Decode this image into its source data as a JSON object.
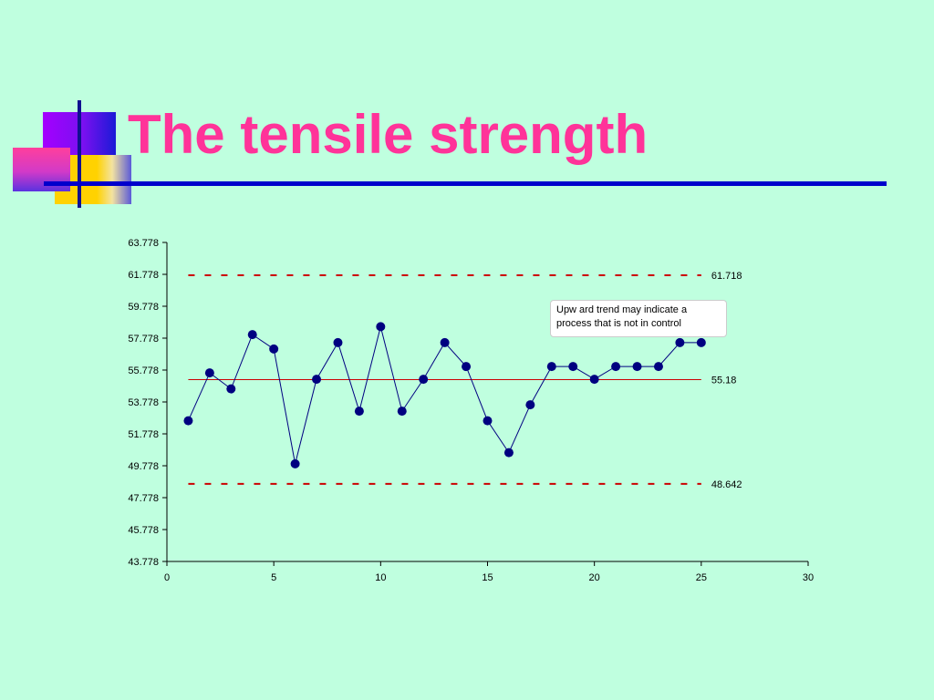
{
  "slide": {
    "title": "The tensile strength"
  },
  "colors": {
    "background": "#bfffdf",
    "title": "#ff3399",
    "rule": "#0000cc",
    "series": "#000080",
    "control_limits": "#cc0000"
  },
  "chart_data": {
    "type": "line",
    "title": "",
    "xlabel": "",
    "ylabel": "",
    "xlim": [
      0,
      30
    ],
    "ylim": [
      43.778,
      63.778
    ],
    "x_ticks": [
      "0",
      "5",
      "10",
      "15",
      "20",
      "25",
      "30"
    ],
    "y_ticks": [
      "63.778",
      "61.778",
      "59.778",
      "57.778",
      "55.778",
      "53.778",
      "51.778",
      "49.778",
      "47.778",
      "45.778",
      "43.778"
    ],
    "grid": false,
    "series": [
      {
        "x": [
          1,
          2,
          3,
          4,
          5,
          6,
          7,
          8,
          9,
          10,
          11,
          12,
          13,
          14,
          15,
          16,
          17,
          18,
          19,
          20,
          21,
          22,
          23,
          24,
          25
        ],
        "y": [
          52.6,
          55.6,
          54.6,
          58.0,
          57.1,
          49.9,
          55.2,
          57.5,
          53.2,
          58.5,
          53.2,
          55.2,
          57.5,
          56.0,
          52.6,
          50.6,
          53.6,
          56.0,
          56.0,
          55.2,
          56.0,
          56.0,
          56.0,
          57.5,
          57.5
        ]
      }
    ],
    "reference_lines": [
      {
        "label": "61.718",
        "value": 61.718,
        "style": "dashed"
      },
      {
        "label": "55.18",
        "value": 55.18,
        "style": "solid"
      },
      {
        "label": "48.642",
        "value": 48.642,
        "style": "dashed"
      }
    ],
    "annotation": {
      "lines": [
        "Upw ard trend may indicate a",
        "process that is not in control"
      ]
    }
  }
}
